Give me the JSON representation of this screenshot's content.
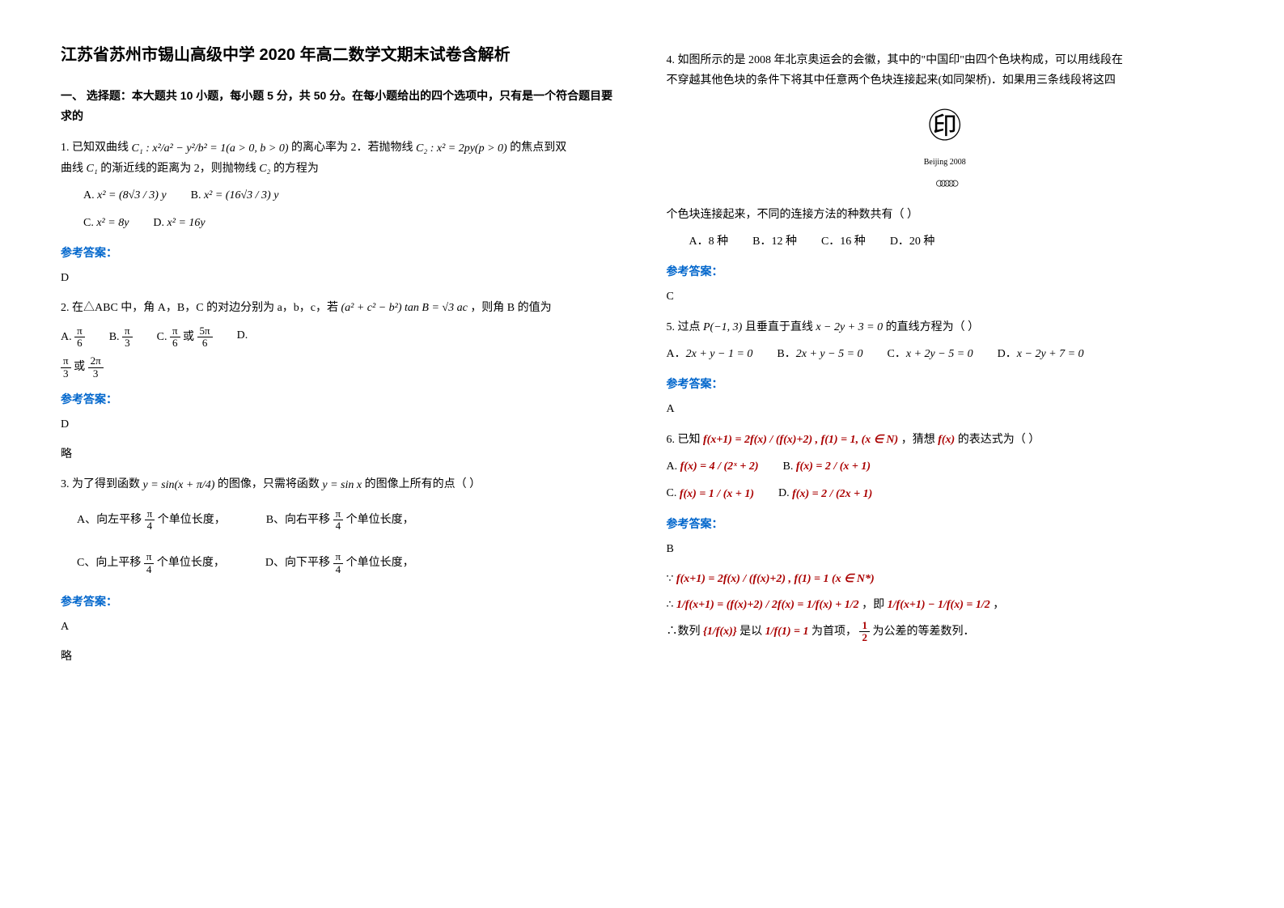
{
  "title": "江苏省苏州市锡山高级中学 2020 年高二数学文期末试卷含解析",
  "section1_head": "一、 选择题：本大题共 10 小题，每小题 5 分，共 50 分。在每小题给出的四个选项中，只有是一个符合题目要求的",
  "ref_answer_label": "参考答案：",
  "q1": {
    "stem_a": "1. 已知双曲线 ",
    "stem_b": " 的离心率为 2．若抛物线 ",
    "stem_c": " 的焦点到双",
    "stem_d": "曲线 ",
    "stem_e": " 的渐近线的距离为 2，则抛物线 ",
    "stem_f": " 的方程为",
    "c1_expr": "C₁ : x²/a² − y²/b² = 1(a > 0, b > 0)",
    "c2_expr": "C₂ : x² = 2py(p > 0)",
    "c1_label": "C₁",
    "c2_label": "C₂",
    "optA": "A.",
    "optA_expr": "x² = (8√3 / 3) y",
    "optB": "B.",
    "optB_expr": "x² = (16√3 / 3) y",
    "optC": "C.",
    "optC_expr": "x² = 8y",
    "optD": "D.",
    "optD_expr": "x² = 16y",
    "answer": "D"
  },
  "q2": {
    "stem_a": "2. 在△ABC 中，角 A，B，C 的对边分别为 a，b，c，若 ",
    "stem_b": "，则角 B 的值为",
    "expr": "(a² + c² − b²) tan B = √3 ac",
    "optA": "A.",
    "optB": "B.",
    "optC": "C.",
    "optD": "D.",
    "valA_num": "π",
    "valA_den": "6",
    "valB_num": "π",
    "valB_den": "3",
    "valC1_num": "π",
    "valC1_den": "6",
    "or1": " 或 ",
    "valC2_num": "5π",
    "valC2_den": "6",
    "valD1_num": "π",
    "valD1_den": "3",
    "or2": " 或 ",
    "valD2_num": "2π",
    "valD2_den": "3",
    "answer": "D",
    "answer_note": "略"
  },
  "q3": {
    "stem_a": "3. 为了得到函数 ",
    "stem_b": " 的图像，只需将函数 ",
    "stem_c": " 的图像上所有的点（          ）",
    "expr1": "y = sin(x + π/4)",
    "expr2": "y = sin x",
    "optA_pre": "A、向左平移 ",
    "optB_pre": "B、向右平移 ",
    "optC_pre": "C、向上平移 ",
    "optD_pre": "D、向下平移 ",
    "unit": " 个单位长度，",
    "frac_num": "π",
    "frac_den": "4",
    "answer": "A",
    "answer_note": "略"
  },
  "q4": {
    "stem_line1": "4. 如图所示的是 2008 年北京奥运会的会徽，其中的\"中国印\"由四个色块构成，可以用线段在",
    "stem_line2": "不穿越其他色块的条件下将其中任意两个色块连接起来(如同架桥)．如果用三条线段将这四",
    "stem_line3": "个色块连接起来，不同的连接方法的种数共有（   ）",
    "logo_text": "Beijing 2008",
    "optA": "A．8 种",
    "optB": "B．12 种",
    "optC": "C．16 种",
    "optD": "D．20 种",
    "answer": "C"
  },
  "q5": {
    "stem_a": "5. 过点 ",
    "stem_b": " 且垂直于直线 ",
    "stem_c": " 的直线方程为（   ）",
    "pt": "P(−1, 3)",
    "line_expr": "x − 2y + 3 = 0",
    "optA": "A．",
    "optA_expr": "2x + y − 1 = 0",
    "optB": "B．",
    "optB_expr": "2x + y − 5 = 0",
    "optC": "C．",
    "optC_expr": "x + 2y − 5 = 0",
    "optD": "D．",
    "optD_expr": "x − 2y + 7 = 0",
    "answer": "A"
  },
  "q6": {
    "stem_a": "6. 已知 ",
    "stem_b": "，猜想 ",
    "stem_c": " 的表达式为（  ）",
    "given": "f(x+1) = 2f(x) / (f(x)+2) , f(1) = 1, (x ∈ N)",
    "fx": "f(x)",
    "optA": "A.",
    "optA_expr": "f(x) = 4 / (2ˣ + 2)",
    "optB": "B.",
    "optB_expr": "f(x) = 2 / (x + 1)",
    "optC": "C.",
    "optC_expr": "f(x) = 1 / (x + 1)",
    "optD": "D.",
    "optD_expr": "f(x) = 2 / (2x + 1)",
    "answer": "B",
    "sol_line1_a": "∵ ",
    "sol_line1_b": "f(x+1) = 2f(x) / (f(x)+2) , f(1) = 1 (x ∈ N*)",
    "sol_line2_a": "∴ ",
    "sol_line2_b": "1/f(x+1) = (f(x)+2) / 2f(x) = 1/f(x) + 1/2",
    "sol_line2_c": "，即 ",
    "sol_line2_d": "1/f(x+1) − 1/f(x) = 1/2",
    "sol_line2_e": "，",
    "sol_line3_a": "∴数列 ",
    "sol_line3_b": "{1/f(x)}",
    "sol_line3_c": " 是以 ",
    "sol_line3_d": "1/f(1) = 1",
    "sol_line3_e": " 为首项，",
    "sol_line3_f_num": "1",
    "sol_line3_f_den": "2",
    "sol_line3_g": " 为公差的等差数列．"
  }
}
